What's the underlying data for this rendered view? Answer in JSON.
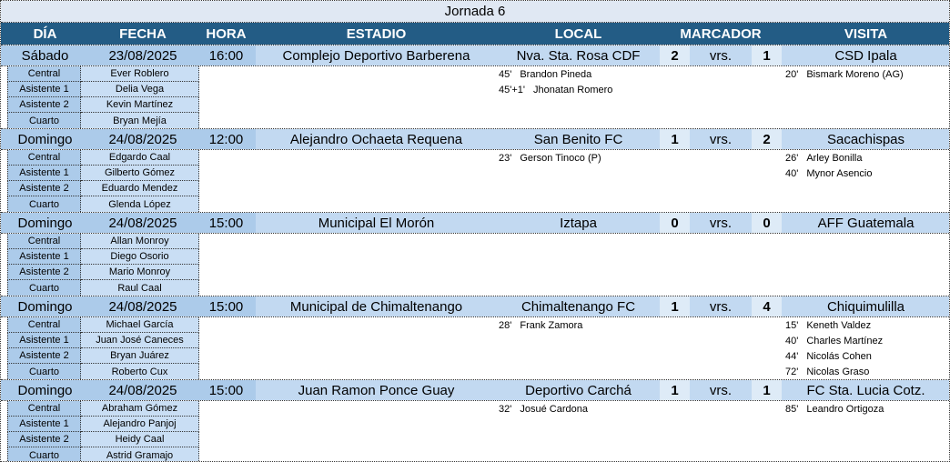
{
  "title": "Jornada 6",
  "headers": [
    "DÍA",
    "FECHA",
    "HORA",
    "ESTADIO",
    "LOCAL",
    "MARCADOR",
    "VISITA"
  ],
  "official_labels": [
    "Central",
    "Asistente 1",
    "Asistente 2",
    "Cuarto"
  ],
  "vrs_label": "vrs.",
  "colors": {
    "header_bg": "#235C85",
    "header_text": "#FFFFFF",
    "title_bg": "#E0E8F3",
    "row_dark": "#ACCBEA",
    "row_light": "#C2D9F1",
    "score_bg": "#DEEBF7",
    "official_name_bg": "#C9DEF4"
  },
  "matches": [
    {
      "day": "Sábado",
      "date": "23/08/2025",
      "time": "16:00",
      "stadium": "Complejo Deportivo Barberena",
      "home": "Nva. Sta. Rosa CDF",
      "home_score": "2",
      "away_score": "1",
      "away": "CSD Ipala",
      "officials": [
        "Ever Roblero",
        "Delia Vega",
        "Kevin Martínez",
        "Bryan Mejía"
      ],
      "home_goals": [
        {
          "min": "45'",
          "player": "Brandon Pineda"
        },
        {
          "min": "45'+1'",
          "player": "Jhonatan Romero"
        }
      ],
      "away_goals": [
        {
          "min": "20'",
          "player": "Bismark Moreno (AG)"
        }
      ]
    },
    {
      "day": "Domingo",
      "date": "24/08/2025",
      "time": "12:00",
      "stadium": "Alejandro Ochaeta Requena",
      "home": "San Benito FC",
      "home_score": "1",
      "away_score": "2",
      "away": "Sacachispas",
      "officials": [
        "Edgardo Caal",
        "Gilberto Gómez",
        "Eduardo Mendez",
        "Glenda López"
      ],
      "home_goals": [
        {
          "min": "23'",
          "player": "Gerson Tinoco (P)"
        }
      ],
      "away_goals": [
        {
          "min": "26'",
          "player": "Arley Bonilla"
        },
        {
          "min": "40'",
          "player": "Mynor Asencio"
        }
      ]
    },
    {
      "day": "Domingo",
      "date": "24/08/2025",
      "time": "15:00",
      "stadium": "Municipal El Morón",
      "home": "Iztapa",
      "home_score": "0",
      "away_score": "0",
      "away": "AFF Guatemala",
      "officials": [
        "Allan Monroy",
        "Diego Osorio",
        "Mario Monroy",
        "Raul Caal"
      ],
      "home_goals": [],
      "away_goals": []
    },
    {
      "day": "Domingo",
      "date": "24/08/2025",
      "time": "15:00",
      "stadium": "Municipal de Chimaltenango",
      "home": "Chimaltenango FC",
      "home_score": "1",
      "away_score": "4",
      "away": "Chiquimulilla",
      "officials": [
        "Michael García",
        "Juan José Caneces",
        "Bryan Juárez",
        "Roberto Cux"
      ],
      "home_goals": [
        {
          "min": "28'",
          "player": "Frank Zamora"
        }
      ],
      "away_goals": [
        {
          "min": "15'",
          "player": "Keneth Valdez"
        },
        {
          "min": "40'",
          "player": "Charles Martínez"
        },
        {
          "min": "44'",
          "player": "Nicolás Cohen"
        },
        {
          "min": "72'",
          "player": "Nicolas Graso"
        }
      ]
    },
    {
      "day": "Domingo",
      "date": "24/08/2025",
      "time": "15:00",
      "stadium": "Juan Ramon Ponce Guay",
      "home": "Deportivo Carchá",
      "home_score": "1",
      "away_score": "1",
      "away": "FC Sta. Lucia Cotz.",
      "officials": [
        "Abraham Gómez",
        "Alejandro Panjoj",
        "Heidy Caal",
        "Astrid Gramajo"
      ],
      "home_goals": [
        {
          "min": "32'",
          "player": "Josué Cardona"
        }
      ],
      "away_goals": [
        {
          "min": "85'",
          "player": "Leandro Ortigoza"
        }
      ]
    }
  ]
}
